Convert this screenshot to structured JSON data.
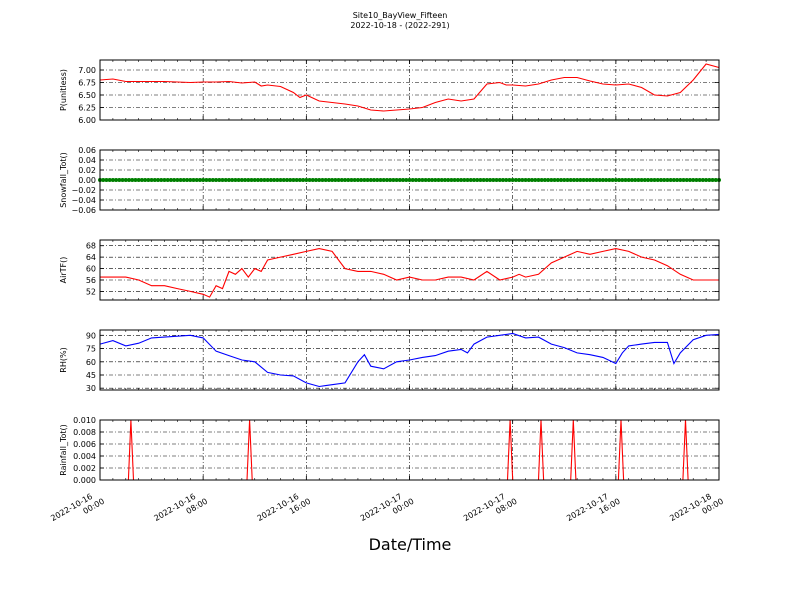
{
  "title": "Site10_BayView_Fifteen",
  "subtitle": "2022-10-18 - (2022-291)",
  "xlabel": "Date/Time",
  "x_ticks": [
    {
      "value": 0,
      "line1": "2022-10-16",
      "line2": "00:00"
    },
    {
      "value": 8,
      "line1": "2022-10-16",
      "line2": "08:00"
    },
    {
      "value": 16,
      "line1": "2022-10-16",
      "line2": "16:00"
    },
    {
      "value": 24,
      "line1": "2022-10-17",
      "line2": "00:00"
    },
    {
      "value": 32,
      "line1": "2022-10-17",
      "line2": "08:00"
    },
    {
      "value": 40,
      "line1": "2022-10-17",
      "line2": "16:00"
    },
    {
      "value": 48,
      "line1": "2022-10-18",
      "line2": "00:00"
    }
  ],
  "x_unit_note": "hours since 2022-10-16 00:00",
  "chart_data": [
    {
      "type": "line",
      "ylabel": "P(unitless)",
      "ylim": [
        6.0,
        7.2
      ],
      "yticks": [
        "6.00",
        "6.25",
        "6.50",
        "6.75",
        "7.00"
      ],
      "ytick_values": [
        6.0,
        6.25,
        6.5,
        6.75,
        7.0
      ],
      "grid": true,
      "color": "#ff0000",
      "x": [
        0,
        1,
        2,
        3,
        4,
        5,
        6,
        7,
        8,
        9,
        10,
        11,
        12,
        12.5,
        13,
        14,
        15,
        15.5,
        16,
        17,
        18,
        19,
        20,
        21,
        22,
        23,
        24,
        25,
        26,
        27,
        28,
        29,
        30,
        31,
        31.5,
        32,
        33,
        34,
        35,
        36,
        37,
        38,
        38.5,
        39,
        40,
        41,
        42,
        43,
        44,
        45,
        46,
        47,
        48
      ],
      "y": [
        6.8,
        6.82,
        6.77,
        6.77,
        6.77,
        6.77,
        6.76,
        6.75,
        6.76,
        6.76,
        6.77,
        6.74,
        6.76,
        6.68,
        6.7,
        6.67,
        6.55,
        6.45,
        6.5,
        6.38,
        6.35,
        6.32,
        6.28,
        6.2,
        6.18,
        6.2,
        6.22,
        6.25,
        6.35,
        6.42,
        6.38,
        6.42,
        6.72,
        6.75,
        6.7,
        6.7,
        6.68,
        6.72,
        6.8,
        6.85,
        6.85,
        6.78,
        6.75,
        6.72,
        6.7,
        6.72,
        6.65,
        6.5,
        6.48,
        6.55,
        6.8,
        7.12,
        7.05
      ]
    },
    {
      "type": "scatter",
      "ylabel": "Snowfall_Tot()",
      "ylim": [
        -0.06,
        0.06
      ],
      "yticks": [
        "0.06",
        "0.04",
        "0.02",
        "0.00",
        "−0.02",
        "−0.04",
        "−0.06"
      ],
      "ytick_values": [
        0.06,
        0.04,
        0.02,
        0.0,
        -0.02,
        -0.04,
        -0.06
      ],
      "grid": true,
      "color": "#008000",
      "x_start": 0,
      "x_end": 48,
      "x_step": 0.25,
      "constant_value": 0.0
    },
    {
      "type": "line",
      "ylabel": "AirTF()",
      "ylim": [
        49,
        70
      ],
      "yticks": [
        "68",
        "64",
        "60",
        "56",
        "52"
      ],
      "ytick_values": [
        68,
        64,
        60,
        56,
        52
      ],
      "grid": true,
      "color": "#ff0000",
      "x": [
        0,
        1,
        2,
        3,
        4,
        5,
        6,
        7,
        8,
        8.5,
        9,
        9.5,
        10,
        10.5,
        11,
        11.5,
        12,
        12.5,
        13,
        14,
        15,
        16,
        17,
        18,
        19,
        20,
        21,
        22,
        23,
        24,
        25,
        26,
        27,
        28,
        29,
        30,
        31,
        32,
        32.5,
        33,
        34,
        35,
        36,
        37,
        38,
        39,
        40,
        41,
        42,
        43,
        44,
        45,
        46,
        47,
        48
      ],
      "y": [
        57,
        57,
        57,
        56,
        54,
        54,
        53,
        52,
        51,
        50,
        54,
        53,
        59,
        58,
        60,
        57,
        60,
        59,
        63,
        64,
        65,
        66,
        67,
        66,
        60,
        59,
        59,
        58,
        56,
        57,
        56,
        56,
        57,
        57,
        56,
        59,
        56,
        57,
        58,
        57,
        58,
        62,
        64,
        66,
        65,
        66,
        67,
        66,
        64,
        63,
        61,
        58,
        56,
        56,
        56
      ]
    },
    {
      "type": "line",
      "ylabel": "RH(%)",
      "ylim": [
        28,
        96
      ],
      "yticks": [
        "90",
        "75",
        "60",
        "45",
        "30"
      ],
      "ytick_values": [
        90,
        75,
        60,
        45,
        30
      ],
      "grid": true,
      "color": "#0000ff",
      "x": [
        0,
        1,
        2,
        3,
        4,
        5,
        6,
        7,
        8,
        9,
        10,
        11,
        12,
        13,
        14,
        15,
        16,
        17,
        17.5,
        18,
        19,
        20,
        20.5,
        21,
        22,
        23,
        24,
        25,
        26,
        27,
        28,
        28.5,
        29,
        30,
        31,
        32,
        33,
        34,
        35,
        36,
        37,
        38,
        39,
        40,
        40.5,
        41,
        42,
        43,
        44,
        44.5,
        45,
        46,
        47,
        48
      ],
      "y": [
        80,
        84,
        78,
        81,
        87,
        88,
        89,
        90,
        87,
        72,
        67,
        62,
        60,
        48,
        45,
        44,
        36,
        32,
        33,
        34,
        36,
        60,
        68,
        55,
        52,
        60,
        62,
        65,
        67,
        72,
        74,
        70,
        80,
        88,
        90,
        92,
        87,
        88,
        80,
        76,
        70,
        68,
        65,
        58,
        70,
        78,
        80,
        82,
        82,
        58,
        70,
        85,
        90,
        91
      ]
    },
    {
      "type": "line",
      "ylabel": "Rainfall_Tot()",
      "ylim": [
        0.0,
        0.01
      ],
      "yticks": [
        "0.010",
        "0.008",
        "0.006",
        "0.004",
        "0.002",
        "0.000"
      ],
      "ytick_values": [
        0.01,
        0.008,
        0.006,
        0.004,
        0.002,
        0.0
      ],
      "grid": true,
      "color": "#ff0000",
      "spikes_x": [
        2.4,
        11.6,
        31.8,
        34.2,
        36.7,
        40.4,
        45.4
      ],
      "spike_value": 0.01
    }
  ]
}
